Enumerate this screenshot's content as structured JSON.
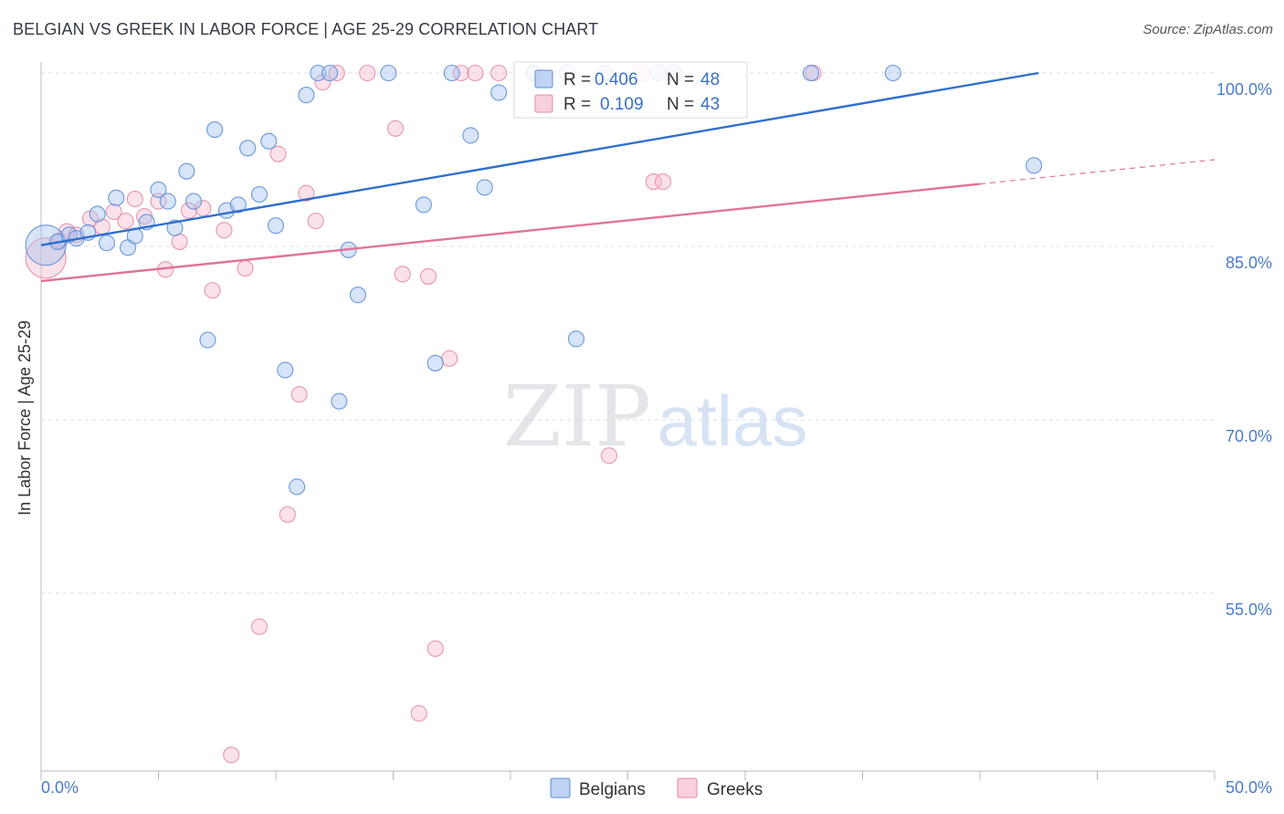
{
  "title": "BELGIAN VS GREEK IN LABOR FORCE | AGE 25-29 CORRELATION CHART",
  "source": "Source: ZipAtlas.com",
  "watermark": {
    "zip": "ZIP",
    "atlas": "atlas"
  },
  "colors": {
    "belgians_fill": "#a9c4ee",
    "belgians_stroke": "#5b8ed8",
    "belgians_line": "#2f6fcc",
    "greeks_fill": "#f6bfd0",
    "greeks_stroke": "#e58aa8",
    "greeks_line": "#e0739a",
    "grid": "#d8dde3",
    "tick_label": "#4a7bc8"
  },
  "legend": {
    "rows": [
      {
        "r_label": "R =",
        "r_value": "0.406",
        "n_label": "N =",
        "n_value": "48",
        "series": "belgians"
      },
      {
        "r_label": "R =",
        "r_value": "0.109",
        "n_label": "N =",
        "n_value": "43",
        "series": "greeks"
      }
    ]
  },
  "chart_data": {
    "type": "scatter",
    "title": "BELGIAN VS GREEK IN LABOR FORCE | AGE 25-29 CORRELATION CHART",
    "xlabel": "",
    "ylabel": "In Labor Force | Age 25-29",
    "xlim": [
      0,
      50
    ],
    "ylim": [
      40.5,
      101.5
    ],
    "x_tick_labels": [
      "0.0%",
      "50.0%"
    ],
    "y_ticks": [
      100,
      85,
      70,
      55
    ],
    "y_tick_labels": [
      "100.0%",
      "85.0%",
      "70.0%",
      "55.0%"
    ],
    "grid": true,
    "legend_position": "bottom",
    "series": [
      {
        "name": "Belgians",
        "color": "#a9c4ee",
        "trend": {
          "x": [
            0,
            42.5
          ],
          "y": [
            85.1,
            100
          ]
        },
        "points": [
          {
            "x": 0.2,
            "y": 85.1,
            "s": "large"
          },
          {
            "x": 0.7,
            "y": 85.4
          },
          {
            "x": 1.2,
            "y": 86.0
          },
          {
            "x": 1.5,
            "y": 85.7
          },
          {
            "x": 2.0,
            "y": 86.2
          },
          {
            "x": 2.4,
            "y": 87.8
          },
          {
            "x": 2.8,
            "y": 85.3
          },
          {
            "x": 3.2,
            "y": 89.2
          },
          {
            "x": 3.7,
            "y": 84.9
          },
          {
            "x": 4.0,
            "y": 85.9
          },
          {
            "x": 4.5,
            "y": 87.1
          },
          {
            "x": 5.0,
            "y": 89.9
          },
          {
            "x": 5.4,
            "y": 88.9
          },
          {
            "x": 5.7,
            "y": 86.6
          },
          {
            "x": 6.2,
            "y": 91.5
          },
          {
            "x": 6.5,
            "y": 88.9
          },
          {
            "x": 7.1,
            "y": 76.9
          },
          {
            "x": 7.4,
            "y": 95.1
          },
          {
            "x": 7.9,
            "y": 88.1
          },
          {
            "x": 8.4,
            "y": 88.6
          },
          {
            "x": 8.8,
            "y": 93.5
          },
          {
            "x": 9.3,
            "y": 89.5
          },
          {
            "x": 9.7,
            "y": 94.1
          },
          {
            "x": 10.0,
            "y": 86.8
          },
          {
            "x": 10.4,
            "y": 74.3
          },
          {
            "x": 10.9,
            "y": 64.2
          },
          {
            "x": 11.3,
            "y": 98.1
          },
          {
            "x": 11.8,
            "y": 100.0
          },
          {
            "x": 12.3,
            "y": 100.0
          },
          {
            "x": 12.7,
            "y": 71.6
          },
          {
            "x": 13.1,
            "y": 84.7
          },
          {
            "x": 13.5,
            "y": 80.8
          },
          {
            "x": 14.8,
            "y": 100.0
          },
          {
            "x": 16.3,
            "y": 88.6
          },
          {
            "x": 16.8,
            "y": 74.9
          },
          {
            "x": 17.5,
            "y": 100.0
          },
          {
            "x": 18.3,
            "y": 94.6
          },
          {
            "x": 18.9,
            "y": 90.1
          },
          {
            "x": 19.5,
            "y": 98.3
          },
          {
            "x": 21.0,
            "y": 100.0
          },
          {
            "x": 22.4,
            "y": 100.0
          },
          {
            "x": 22.8,
            "y": 77.0
          },
          {
            "x": 24.0,
            "y": 100.0
          },
          {
            "x": 26.3,
            "y": 100.0
          },
          {
            "x": 27.0,
            "y": 100.0
          },
          {
            "x": 32.8,
            "y": 100.0
          },
          {
            "x": 36.3,
            "y": 100.0
          },
          {
            "x": 42.3,
            "y": 92.0
          }
        ]
      },
      {
        "name": "Greeks",
        "color": "#f6bfd0",
        "trend": {
          "x": [
            0,
            40
          ],
          "y": [
            82.0,
            90.4
          ]
        },
        "trend_dashed": {
          "x": [
            40,
            50
          ],
          "y": [
            90.4,
            92.5
          ]
        },
        "points": [
          {
            "x": 0.2,
            "y": 84.0,
            "s": "large"
          },
          {
            "x": 0.8,
            "y": 85.5
          },
          {
            "x": 1.1,
            "y": 86.3
          },
          {
            "x": 1.5,
            "y": 86.0
          },
          {
            "x": 2.1,
            "y": 87.4
          },
          {
            "x": 2.6,
            "y": 86.7
          },
          {
            "x": 3.1,
            "y": 88.0
          },
          {
            "x": 3.6,
            "y": 87.2
          },
          {
            "x": 4.0,
            "y": 89.1
          },
          {
            "x": 4.4,
            "y": 87.6
          },
          {
            "x": 5.0,
            "y": 88.9
          },
          {
            "x": 5.3,
            "y": 83.0
          },
          {
            "x": 5.9,
            "y": 85.4
          },
          {
            "x": 6.3,
            "y": 88.1
          },
          {
            "x": 6.9,
            "y": 88.3
          },
          {
            "x": 7.3,
            "y": 81.2
          },
          {
            "x": 7.8,
            "y": 86.4
          },
          {
            "x": 8.1,
            "y": 41.0
          },
          {
            "x": 8.7,
            "y": 83.1
          },
          {
            "x": 9.3,
            "y": 52.1
          },
          {
            "x": 10.1,
            "y": 93.0
          },
          {
            "x": 10.5,
            "y": 61.8
          },
          {
            "x": 11.0,
            "y": 72.2
          },
          {
            "x": 11.3,
            "y": 89.6
          },
          {
            "x": 11.7,
            "y": 87.2
          },
          {
            "x": 12.0,
            "y": 99.2
          },
          {
            "x": 12.6,
            "y": 100.0
          },
          {
            "x": 13.9,
            "y": 100.0
          },
          {
            "x": 15.1,
            "y": 95.2
          },
          {
            "x": 15.4,
            "y": 82.6
          },
          {
            "x": 16.1,
            "y": 44.6
          },
          {
            "x": 16.5,
            "y": 82.4
          },
          {
            "x": 16.8,
            "y": 50.2
          },
          {
            "x": 17.4,
            "y": 75.3
          },
          {
            "x": 17.9,
            "y": 100.0
          },
          {
            "x": 18.5,
            "y": 100.0
          },
          {
            "x": 19.5,
            "y": 100.0
          },
          {
            "x": 21.0,
            "y": 100.0
          },
          {
            "x": 24.2,
            "y": 66.9
          },
          {
            "x": 25.6,
            "y": 100.0
          },
          {
            "x": 26.1,
            "y": 90.6
          },
          {
            "x": 26.5,
            "y": 90.6
          },
          {
            "x": 32.9,
            "y": 100.0
          }
        ]
      }
    ]
  },
  "bottom_legend": {
    "items": [
      {
        "label": "Belgians",
        "series": "belgians"
      },
      {
        "label": "Greeks",
        "series": "greeks"
      }
    ]
  }
}
